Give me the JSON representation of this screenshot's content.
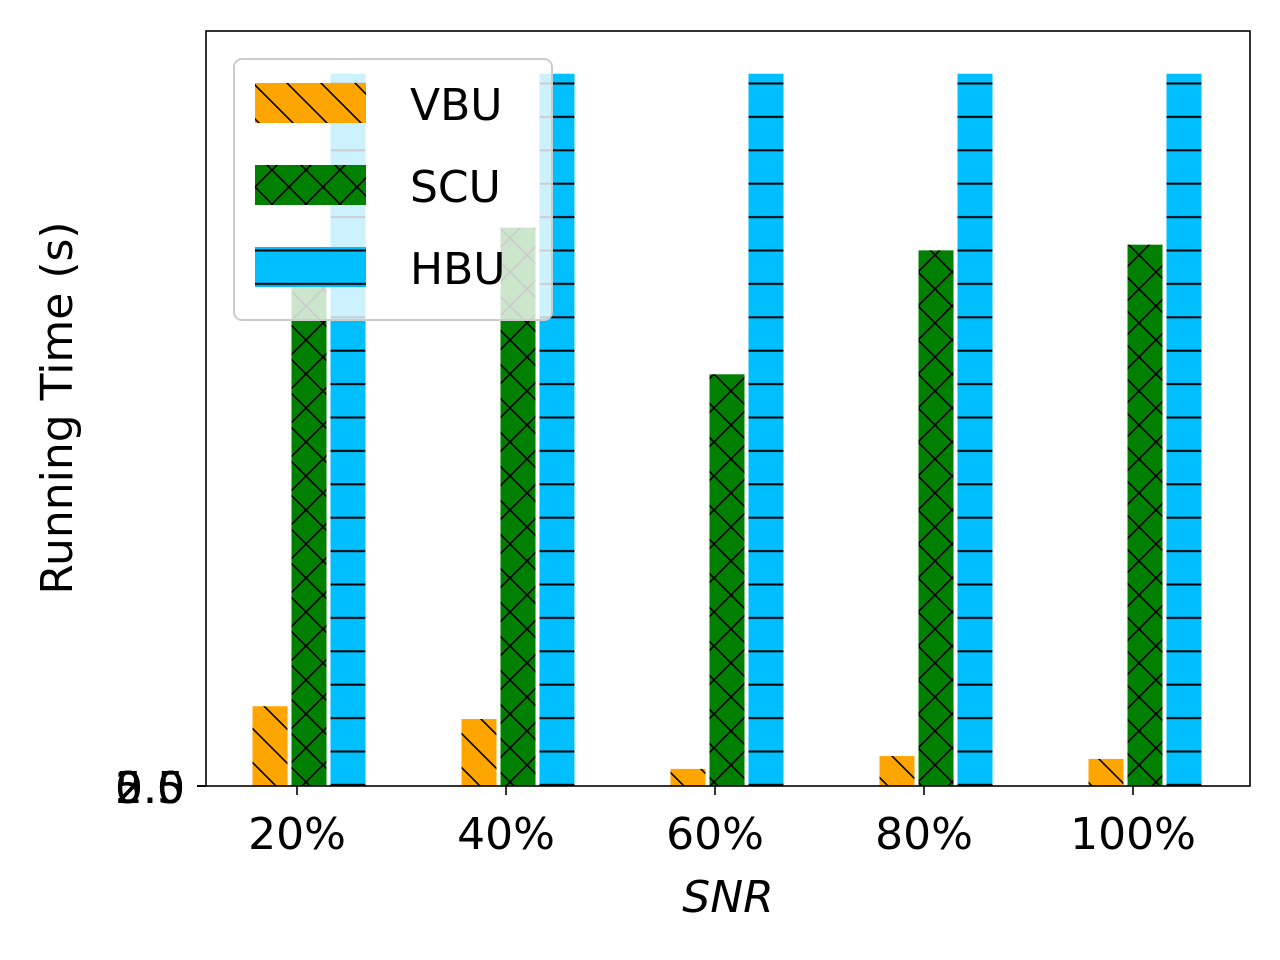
{
  "chart_data": {
    "type": "bar",
    "categories": [
      "20%",
      "40%",
      "60%",
      "80%",
      "100%"
    ],
    "series": [
      {
        "name": "VBU",
        "values": [
          2.8,
          2.35,
          0.6,
          1.05,
          0.95
        ],
        "color": "#FFA500",
        "hatch": "backslash"
      },
      {
        "name": "SCU",
        "values": [
          18.1,
          19.6,
          14.45,
          18.8,
          19.0
        ],
        "color": "#008000",
        "hatch": "cross"
      },
      {
        "name": "HBU",
        "values": [
          25.0,
          25.0,
          25.0,
          25.0,
          25.0
        ],
        "color": "#00BFFF",
        "hatch": "horizontal"
      }
    ],
    "xlabel": "SNR",
    "ylabel": "Running Time (s)",
    "yticks": [
      "0.0",
      "2.5",
      "5.0"
    ],
    "ylim": [
      0,
      26.5
    ],
    "legend_position": "top-left",
    "grid": false
  }
}
